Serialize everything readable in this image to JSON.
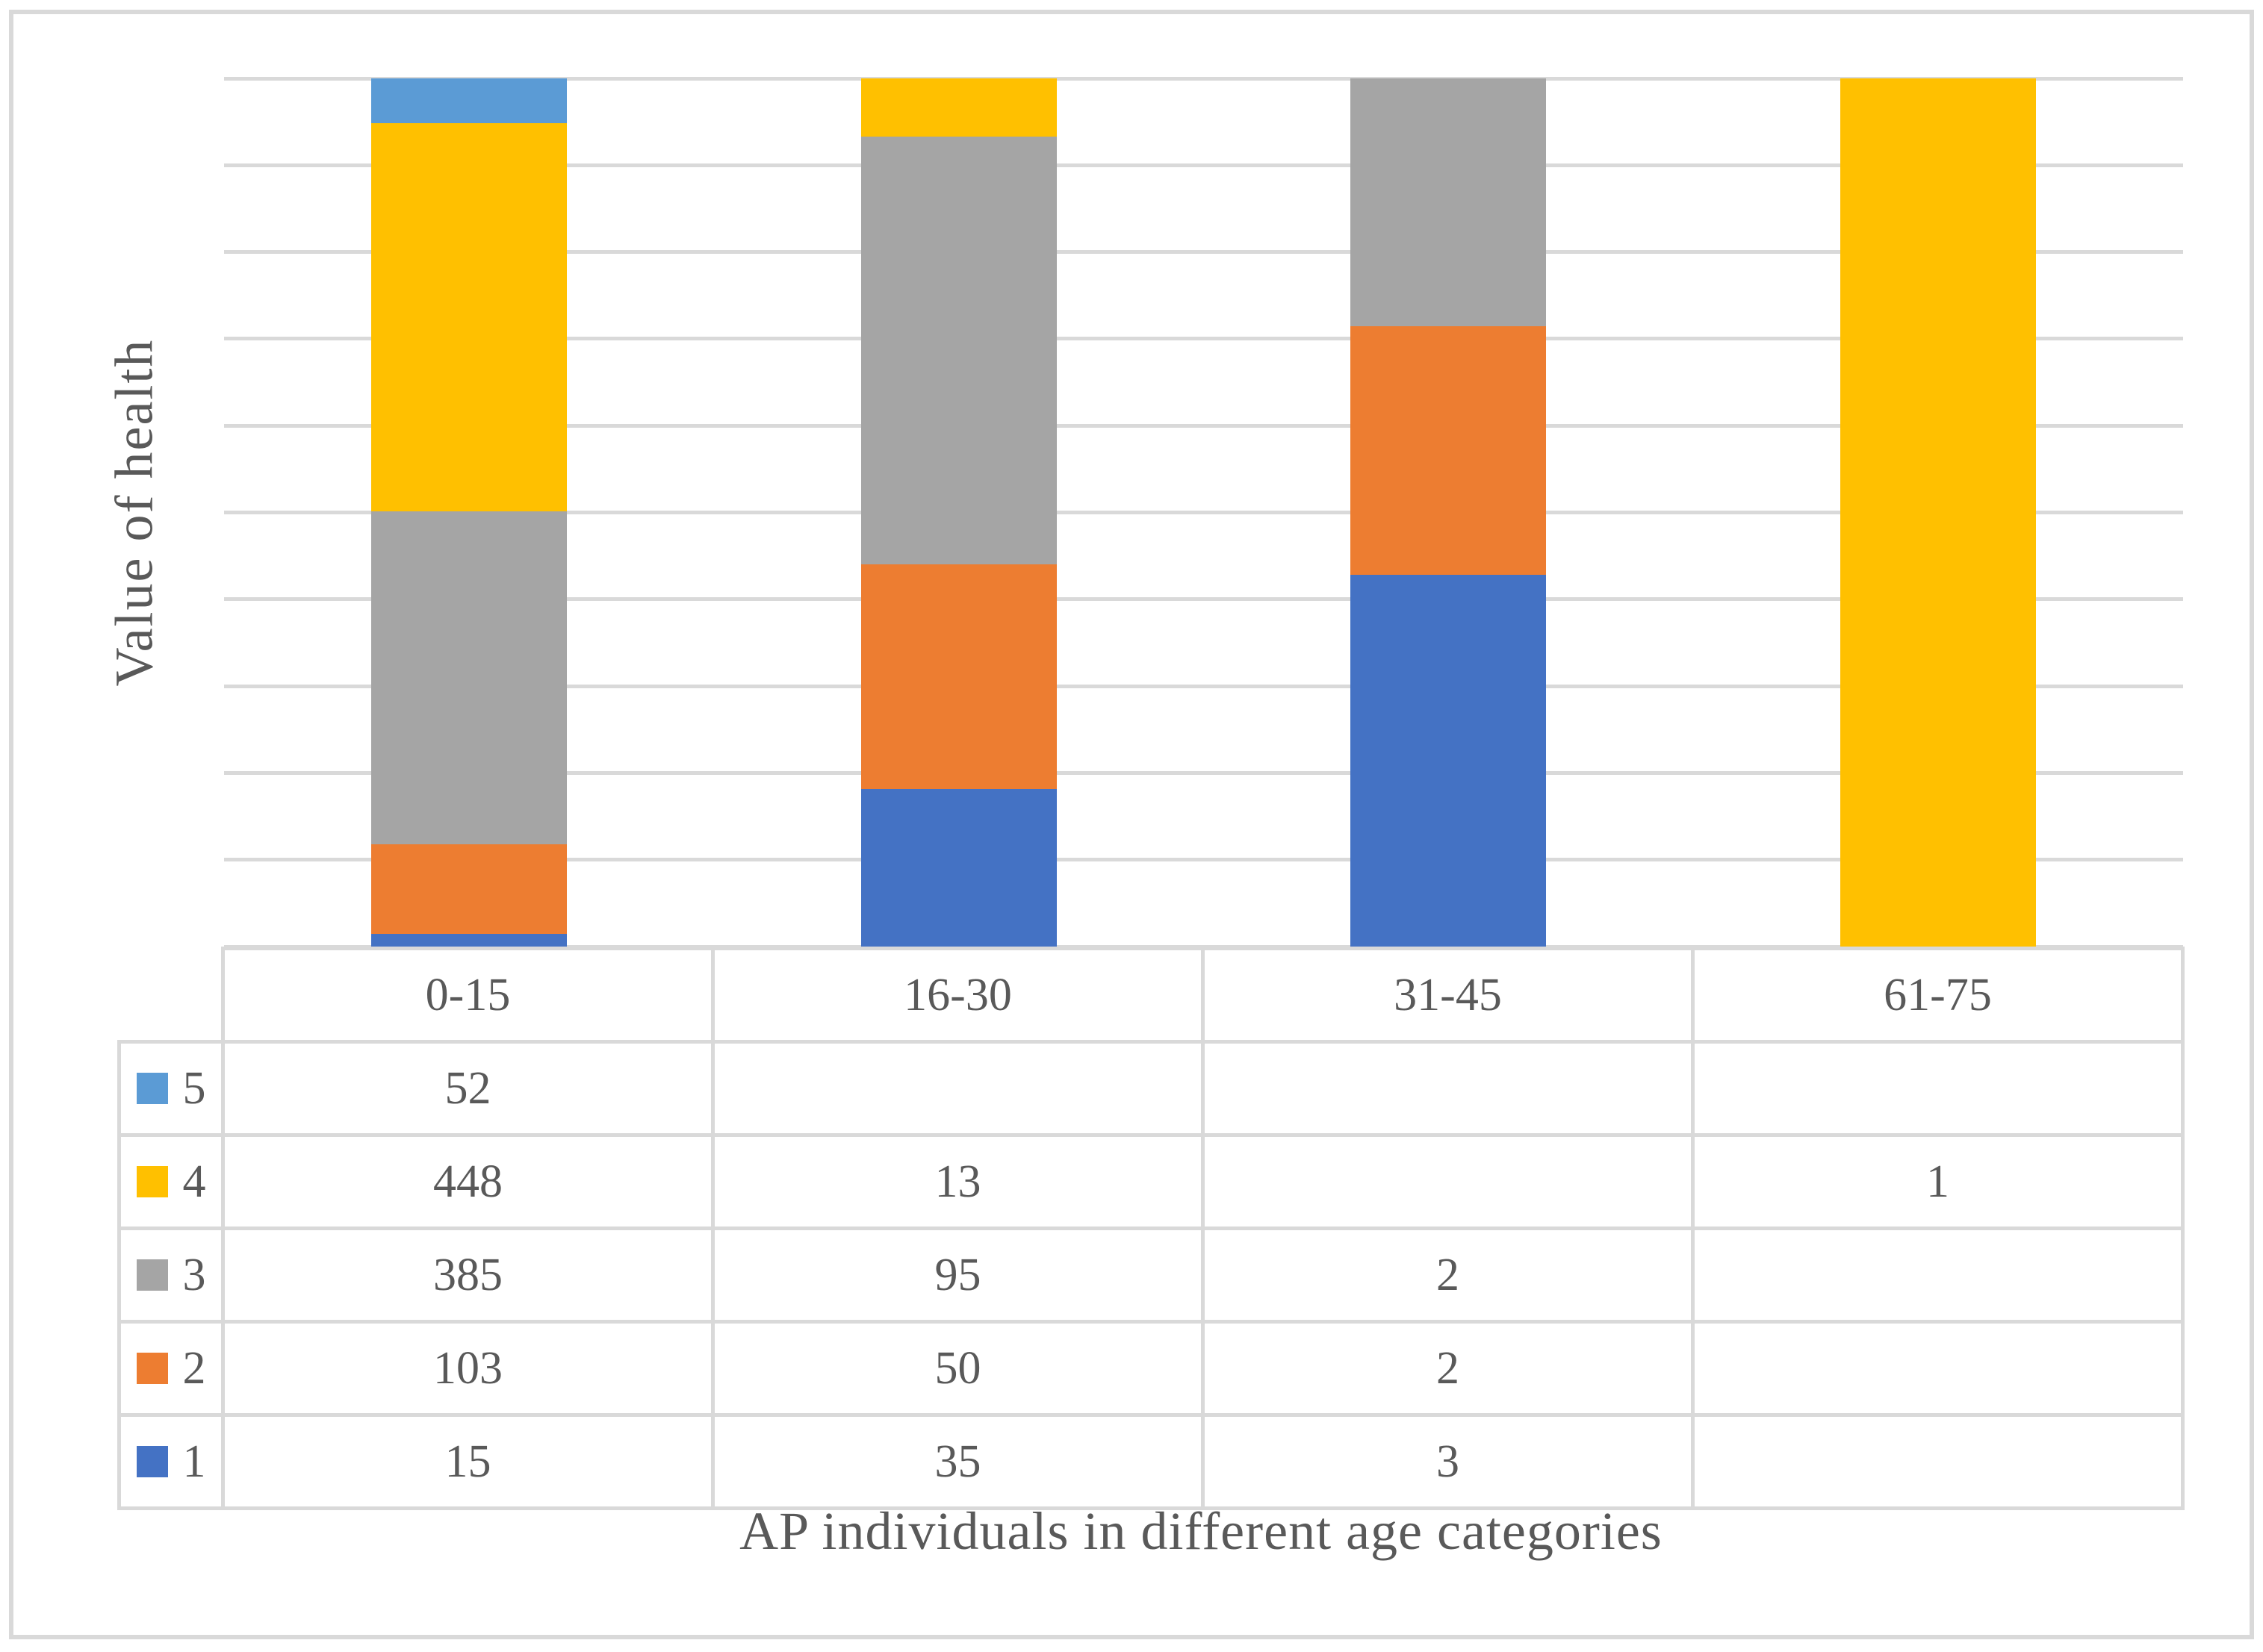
{
  "chart": {
    "y_axis_title": "Value of health",
    "x_axis_title": "AP individuals in different age categories",
    "grid_color": "#d9d9d9",
    "text_color": "#595959",
    "background_color": "#ffffff"
  },
  "chart_data": {
    "type": "bar",
    "subtype": "stacked-100-percent",
    "title": "",
    "xlabel": "AP individuals in different age categories",
    "ylabel": "Value of health",
    "categories": [
      "0-15",
      "16-30",
      "31-45",
      "61-75"
    ],
    "series": [
      {
        "name": "5",
        "color": "#5b9bd5",
        "values": [
          52,
          null,
          null,
          null
        ]
      },
      {
        "name": "4",
        "color": "#ffc000",
        "values": [
          448,
          13,
          null,
          1
        ]
      },
      {
        "name": "3",
        "color": "#a5a5a5",
        "values": [
          385,
          95,
          2,
          null
        ]
      },
      {
        "name": "2",
        "color": "#ed7d31",
        "values": [
          103,
          50,
          2,
          null
        ]
      },
      {
        "name": "1",
        "color": "#4472c4",
        "values": [
          15,
          35,
          3,
          null
        ]
      }
    ],
    "stack_order_bottom_to_top": [
      "1",
      "2",
      "3",
      "4",
      "5"
    ],
    "axis": {
      "min_percent": 0,
      "max_percent": 100,
      "gridline_interval_percent": 10,
      "gridline_count": 11,
      "y_tick_labels_visible": false
    },
    "legend_position": "table-left-column",
    "data_table_visible": true
  }
}
